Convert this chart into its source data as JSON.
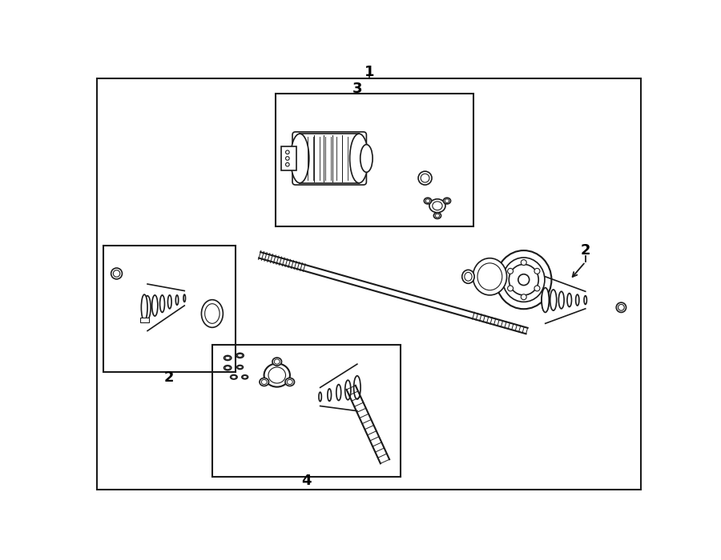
{
  "bg_color": "#ffffff",
  "line_color": "#1a1a1a",
  "fig_width": 9.0,
  "fig_height": 7.0,
  "dpi": 100,
  "label_1": "1",
  "label_2": "2",
  "label_3": "3",
  "label_4": "4",
  "label_fontsize": 13,
  "label_fontweight": "bold"
}
